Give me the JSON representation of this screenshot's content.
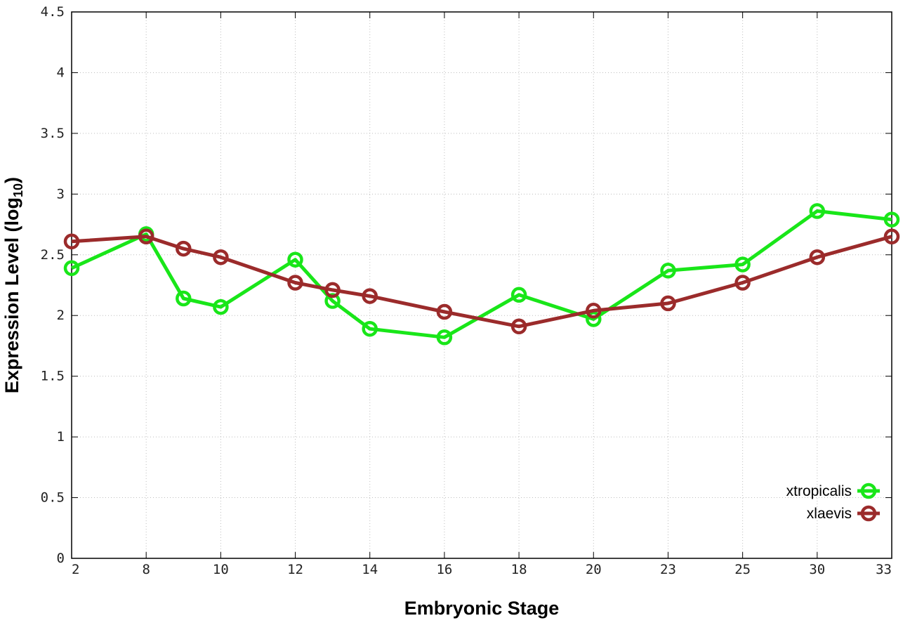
{
  "chart_data": {
    "type": "line",
    "title": "",
    "xlabel": "Embryonic Stage",
    "ylabel": "Expression Level (log",
    "ylabel_subscript": "10",
    "ylabel_suffix": ")",
    "x_ticks": [
      2,
      8,
      10,
      12,
      14,
      16,
      18,
      20,
      23,
      25,
      30,
      33
    ],
    "x_positions_are_ordinal_spaced": true,
    "xlim": [
      2,
      33
    ],
    "y_ticks": [
      "0",
      "0.5",
      "1",
      "1.5",
      "2",
      "2.5",
      "3",
      "3.5",
      "4",
      "4.5"
    ],
    "ylim": [
      0,
      4.5
    ],
    "grid": true,
    "legend_placement": "bottom-right",
    "series": [
      {
        "name": "xtropicalis",
        "color": "#19e619",
        "x": [
          2,
          8,
          9,
          10,
          12,
          13,
          14,
          16,
          18,
          20,
          23,
          25,
          30,
          33
        ],
        "values": [
          2.39,
          2.67,
          2.14,
          2.07,
          2.46,
          2.12,
          1.89,
          1.82,
          2.17,
          1.97,
          2.37,
          2.42,
          2.86,
          2.79
        ]
      },
      {
        "name": "xlaevis",
        "color": "#9b2b2b",
        "x": [
          2,
          8,
          9,
          10,
          12,
          13,
          14,
          16,
          18,
          20,
          23,
          25,
          30,
          33
        ],
        "values": [
          2.61,
          2.65,
          2.55,
          2.48,
          2.27,
          2.21,
          2.16,
          2.03,
          1.91,
          2.04,
          2.1,
          2.27,
          2.48,
          2.65
        ]
      }
    ]
  }
}
